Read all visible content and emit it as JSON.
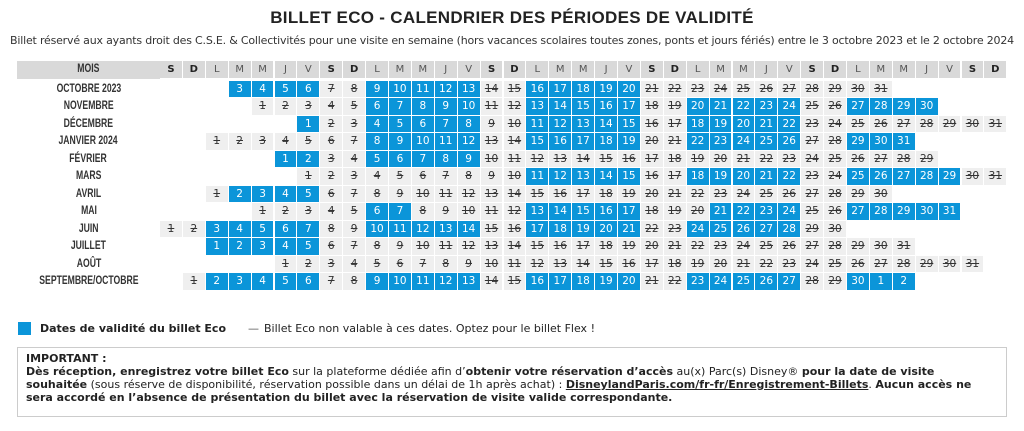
{
  "title": "BILLET ECO - CALENDRIER DES PÉRIODES DE VALIDITÉ",
  "subtitle": "Billet réservé aux ayants droit des C.S.E. & Collectivités pour une visite en semaine (hors vacances scolaires toutes zones, ponts et jours fériés) entre le 3 octobre 2023 et le 2 octobre 2024",
  "colors": {
    "valid": "#0b95d9",
    "invalid_bg": "#efefef",
    "header_bg": "#d9d9d9"
  },
  "header": {
    "mois": "MOIS",
    "weekdays": [
      "S",
      "D",
      "L",
      "M",
      "M",
      "J",
      "V",
      "S",
      "D",
      "L",
      "M",
      "M",
      "J",
      "V",
      "S",
      "D",
      "L",
      "M",
      "M",
      "J",
      "V",
      "S",
      "D",
      "L",
      "M",
      "M",
      "J",
      "V",
      "S",
      "D",
      "L",
      "M",
      "M",
      "J",
      "V",
      "S",
      "D"
    ]
  },
  "months": [
    {
      "name": "OCTOBRE 2023",
      "year": 2023,
      "month": 10,
      "first_shown": 3,
      "last": 31,
      "valid": [
        3,
        4,
        5,
        6,
        9,
        10,
        11,
        12,
        13,
        16,
        17,
        18,
        19,
        20
      ]
    },
    {
      "name": "NOVEMBRE",
      "year": 2023,
      "month": 11,
      "first_shown": 1,
      "last": 30,
      "valid": [
        6,
        7,
        8,
        9,
        10,
        13,
        14,
        15,
        16,
        17,
        20,
        21,
        22,
        23,
        24,
        27,
        28,
        29,
        30
      ]
    },
    {
      "name": "DÉCEMBRE",
      "year": 2023,
      "month": 12,
      "first_shown": 1,
      "last": 31,
      "valid": [
        1,
        4,
        5,
        6,
        7,
        8,
        11,
        12,
        13,
        14,
        15,
        18,
        19,
        20,
        21,
        22
      ]
    },
    {
      "name": "JANVIER 2024",
      "year": 2024,
      "month": 1,
      "first_shown": 1,
      "last": 31,
      "valid": [
        8,
        9,
        10,
        11,
        12,
        15,
        16,
        17,
        18,
        19,
        22,
        23,
        24,
        25,
        26,
        29,
        30,
        31
      ]
    },
    {
      "name": "FÉVRIER",
      "year": 2024,
      "month": 2,
      "first_shown": 1,
      "last": 29,
      "valid": [
        1,
        2,
        5,
        6,
        7,
        8,
        9
      ]
    },
    {
      "name": "MARS",
      "year": 2024,
      "month": 3,
      "first_shown": 1,
      "last": 31,
      "valid": [
        11,
        12,
        13,
        14,
        15,
        18,
        19,
        20,
        21,
        22,
        25,
        26,
        27,
        28,
        29
      ]
    },
    {
      "name": "AVRIL",
      "year": 2024,
      "month": 4,
      "first_shown": 1,
      "last": 30,
      "valid": [
        2,
        3,
        4,
        5
      ]
    },
    {
      "name": "MAI",
      "year": 2024,
      "month": 5,
      "first_shown": 1,
      "last": 31,
      "valid": [
        6,
        7,
        13,
        14,
        15,
        16,
        17,
        21,
        22,
        23,
        24,
        27,
        28,
        29,
        30,
        31
      ]
    },
    {
      "name": "JUIN",
      "year": 2024,
      "month": 6,
      "first_shown": 1,
      "last": 30,
      "valid": [
        3,
        4,
        5,
        6,
        7,
        10,
        11,
        12,
        13,
        14,
        17,
        18,
        19,
        20,
        21,
        24,
        25,
        26,
        27,
        28
      ]
    },
    {
      "name": "JUILLET",
      "year": 2024,
      "month": 7,
      "first_shown": 1,
      "last": 31,
      "valid": [
        1,
        2,
        3,
        4,
        5
      ]
    },
    {
      "name": "AOÛT",
      "year": 2024,
      "month": 8,
      "first_shown": 1,
      "last": 31,
      "valid": []
    },
    {
      "name": "SEPTEMBRE/OCTOBRE",
      "year": 2024,
      "month": 9,
      "first_shown": 1,
      "last": 30,
      "valid": [
        2,
        3,
        4,
        5,
        6,
        9,
        10,
        11,
        12,
        13,
        16,
        17,
        18,
        19,
        20,
        23,
        24,
        25,
        26,
        27,
        30
      ],
      "extra_days": [
        1,
        2
      ],
      "extra_valid": [
        1,
        2
      ]
    }
  ],
  "legend": {
    "valid_label": "Dates de validité du billet Eco",
    "invalid_symbol": "—",
    "invalid_label": "Billet Eco non valable à ces dates. Optez pour le billet Flex !"
  },
  "important": {
    "heading": "IMPORTANT :",
    "b1": "Dès réception, enregistrez votre billet Eco",
    "t1": " sur la plateforme dédiée afin d’",
    "b2": "obtenir votre réservation d’accès",
    "t2": " au(x) Parc(s) Disney® ",
    "b3": "pour la date de visite souhaitée",
    "t3": " (sous réserve de disponibilité, réservation possible dans un délai de 1h après achat) : ",
    "link": "DisneylandParis.com/fr-fr/Enregistrement-Billets",
    "t4": ". ",
    "b4": "Aucun accès ne sera accordé en l’absence de présentation du billet avec la réservation de visite valide correspondante."
  }
}
